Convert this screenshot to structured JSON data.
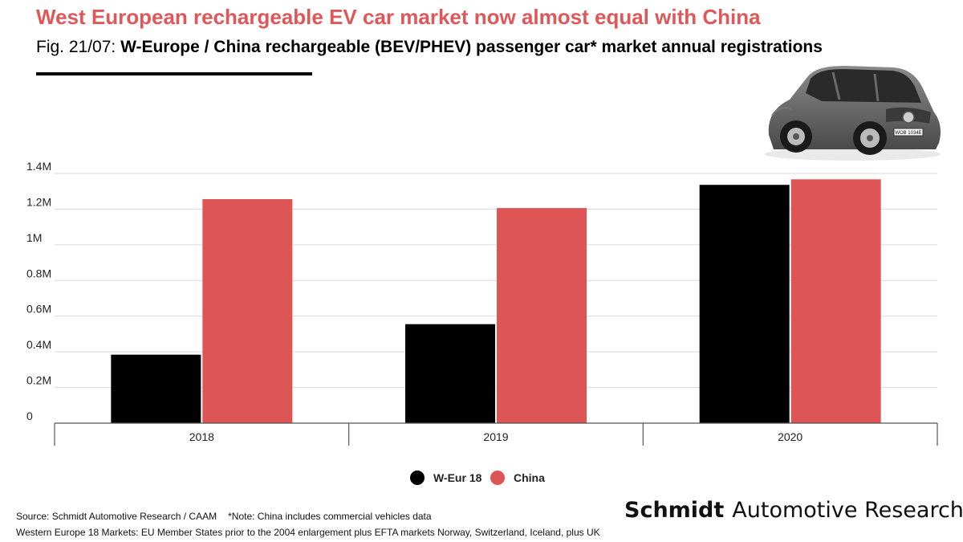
{
  "headline": "West European rechargeable EV car market now almost equal with China",
  "subtitle": {
    "prefix": "Fig. 21/07: ",
    "bold": "W-Europe / China rechargeable (BEV/PHEV) passenger car* market annual registrations"
  },
  "colors": {
    "headline": "#e0575a",
    "weur": "#000000",
    "china": "#dd5555",
    "grid": "#d9d9d9"
  },
  "chart_data": {
    "type": "bar",
    "categories": [
      "2018",
      "2019",
      "2020"
    ],
    "series": [
      {
        "name": "W-Eur 18",
        "values": [
          384000,
          555000,
          1336000
        ]
      },
      {
        "name": "China",
        "values": [
          1256000,
          1206000,
          1367000
        ]
      }
    ],
    "y_ticks": [
      {
        "value": 0,
        "label": "0"
      },
      {
        "value": 200000,
        "label": "0.2M"
      },
      {
        "value": 400000,
        "label": "0.4M"
      },
      {
        "value": 600000,
        "label": "0.6M"
      },
      {
        "value": 800000,
        "label": "0.8M"
      },
      {
        "value": 1000000,
        "label": "1M"
      },
      {
        "value": 1200000,
        "label": "1.2M"
      },
      {
        "value": 1400000,
        "label": "1.4M"
      }
    ],
    "ylim": [
      0,
      1400000
    ],
    "grid": true,
    "legend_position": "bottom-center"
  },
  "source": "Source: Schmidt Automotive Research / CAAM",
  "note": "*Note: China includes commercial vehicles data",
  "footnote": "Western Europe 18 Markets: EU Member States prior to the 2004 enlargement plus EFTA markets Norway, Switzerland, Iceland, plus UK",
  "brand": {
    "bold": "Schmidt",
    "rest": "Automotive Research"
  },
  "car_plate": "WOB 1034E"
}
